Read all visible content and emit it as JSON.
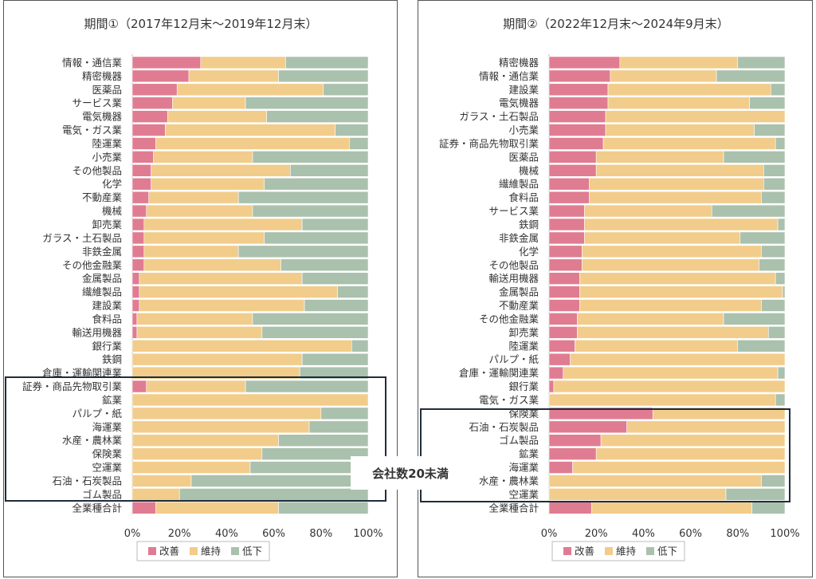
{
  "colors": {
    "improve": "#e07c92",
    "maintain": "#f2cc8a",
    "decline": "#aac1ad"
  },
  "legend": [
    "改善",
    "維持",
    "低下"
  ],
  "overlay_label": "会社数20未満",
  "chart_data": [
    {
      "type": "bar",
      "stacked": "percent",
      "orientation": "horizontal",
      "title": "期間①（2017年12月末～2019年12月末）",
      "xlim": [
        0,
        100
      ],
      "xticks": [
        "0%",
        "20%",
        "40%",
        "60%",
        "80%",
        "100%"
      ],
      "categories": [
        "情報・通信業",
        "精密機器",
        "医薬品",
        "サービス業",
        "電気機器",
        "電気・ガス業",
        "陸運業",
        "小売業",
        "その他製品",
        "化学",
        "不動産業",
        "機械",
        "卸売業",
        "ガラス・土石製品",
        "非鉄金属",
        "その他金融業",
        "金属製品",
        "繊維製品",
        "建設業",
        "食料品",
        "輸送用機器",
        "銀行業",
        "鉄鋼",
        "倉庫・運輸関連業",
        "証券・商品先物取引業",
        "鉱業",
        "パルプ・紙",
        "海運業",
        "水産・農林業",
        "保険業",
        "空運業",
        "石油・石炭製品",
        "ゴム製品",
        "全業種合計"
      ],
      "series": [
        {
          "name": "改善",
          "values": [
            29,
            24,
            19,
            17,
            15,
            14,
            10,
            9,
            8,
            8,
            7,
            6,
            5,
            5,
            5,
            5,
            3,
            3,
            3,
            2,
            2,
            0,
            0,
            0,
            6,
            0,
            0,
            0,
            0,
            0,
            0,
            0,
            0,
            10
          ]
        },
        {
          "name": "維持",
          "values": [
            36,
            38,
            62,
            31,
            42,
            72,
            82,
            42,
            59,
            48,
            38,
            45,
            67,
            51,
            40,
            58,
            69,
            84,
            70,
            49,
            53,
            93,
            72,
            71,
            42,
            100,
            80,
            75,
            62,
            55,
            50,
            25,
            20,
            52
          ]
        },
        {
          "name": "低下",
          "values": [
            35,
            38,
            19,
            52,
            43,
            14,
            8,
            49,
            33,
            44,
            55,
            49,
            28,
            44,
            55,
            37,
            28,
            13,
            27,
            49,
            45,
            7,
            28,
            29,
            52,
            0,
            20,
            25,
            38,
            45,
            50,
            75,
            80,
            38
          ]
        }
      ],
      "legend_position": "bottom",
      "highlight_box": "証券・商品先物取引業〜ゴム製品"
    },
    {
      "type": "bar",
      "stacked": "percent",
      "orientation": "horizontal",
      "title": "期間②（2022年12月末～2024年9月末）",
      "xlim": [
        0,
        100
      ],
      "xticks": [
        "0%",
        "20%",
        "40%",
        "60%",
        "80%",
        "100%"
      ],
      "categories": [
        "精密機器",
        "情報・通信業",
        "建設業",
        "電気機器",
        "ガラス・土石製品",
        "小売業",
        "証券・商品先物取引業",
        "医薬品",
        "機械",
        "繊維製品",
        "食料品",
        "サービス業",
        "鉄鋼",
        "非鉄金属",
        "化学",
        "その他製品",
        "輸送用機器",
        "金属製品",
        "不動産業",
        "その他金融業",
        "卸売業",
        "陸運業",
        "パルプ・紙",
        "倉庫・運輸関連業",
        "銀行業",
        "電気・ガス業",
        "保険業",
        "石油・石炭製品",
        "ゴム製品",
        "鉱業",
        "海運業",
        "水産・農林業",
        "空運業",
        "全業種合計"
      ],
      "series": [
        {
          "name": "改善",
          "values": [
            30,
            26,
            25,
            25,
            24,
            24,
            23,
            20,
            20,
            17,
            17,
            15,
            15,
            15,
            14,
            14,
            13,
            13,
            13,
            12,
            12,
            11,
            9,
            6,
            2,
            0,
            44,
            33,
            22,
            20,
            10,
            0,
            0,
            18
          ]
        },
        {
          "name": "維持",
          "values": [
            50,
            45,
            69,
            60,
            76,
            63,
            73,
            54,
            71,
            74,
            73,
            54,
            82,
            66,
            76,
            75,
            83,
            86,
            77,
            62,
            81,
            69,
            91,
            91,
            98,
            96,
            56,
            67,
            78,
            80,
            90,
            90,
            75,
            68
          ]
        },
        {
          "name": "低下",
          "values": [
            20,
            29,
            6,
            15,
            0,
            13,
            4,
            26,
            9,
            9,
            10,
            31,
            3,
            19,
            10,
            11,
            4,
            1,
            10,
            26,
            7,
            20,
            0,
            3,
            0,
            4,
            0,
            0,
            0,
            0,
            0,
            10,
            25,
            14
          ]
        }
      ],
      "legend_position": "bottom",
      "highlight_box": "保険業〜空運業"
    }
  ]
}
